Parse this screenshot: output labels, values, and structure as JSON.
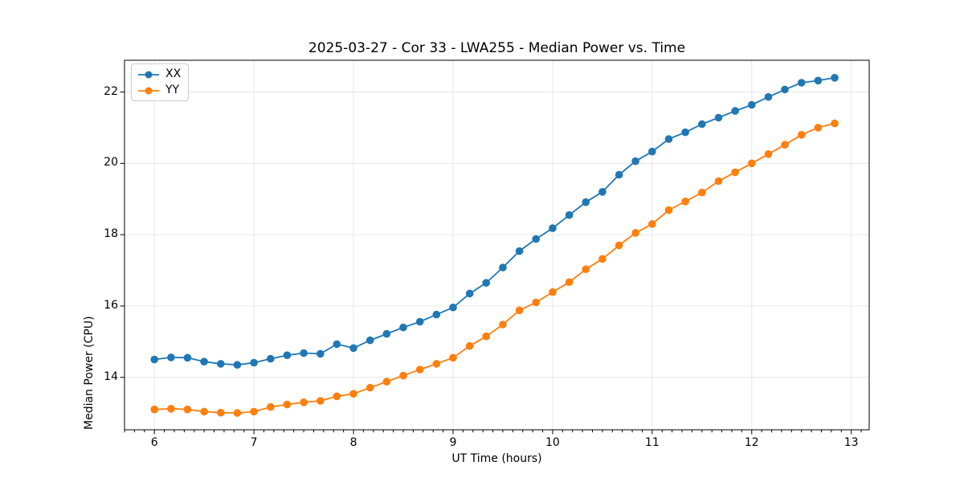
{
  "figure": {
    "background": "#ffffff"
  },
  "chart_data": {
    "type": "line",
    "title": "2025-03-27 - Cor 33 - LWA255 - Median Power vs. Time",
    "xlabel": "UT Time (hours)",
    "ylabel": "Median Power (CPU)",
    "xlim": [
      5.7,
      13.18
    ],
    "ylim": [
      12.53,
      22.89
    ],
    "xticks": [
      6,
      7,
      8,
      9,
      10,
      11,
      12,
      13
    ],
    "yticks": [
      14,
      16,
      18,
      20,
      22
    ],
    "x_minor_tick_step": 0.1,
    "grid": true,
    "grid_color": "#e6e6e6",
    "legend_position": "upper-left",
    "x": [
      6.0,
      6.167,
      6.333,
      6.5,
      6.667,
      6.833,
      7.0,
      7.167,
      7.333,
      7.5,
      7.667,
      7.833,
      8.0,
      8.167,
      8.333,
      8.5,
      8.667,
      8.833,
      9.0,
      9.167,
      9.333,
      9.5,
      9.667,
      9.833,
      10.0,
      10.167,
      10.333,
      10.5,
      10.667,
      10.833,
      11.0,
      11.167,
      11.333,
      11.5,
      11.667,
      11.833,
      12.0,
      12.167,
      12.333,
      12.5,
      12.667,
      12.833
    ],
    "series": [
      {
        "name": "XX",
        "color": "#1f77b4",
        "marker": "circle",
        "values": [
          14.5,
          14.56,
          14.55,
          14.44,
          14.38,
          14.35,
          14.41,
          14.52,
          14.62,
          14.68,
          14.66,
          14.93,
          14.82,
          15.04,
          15.22,
          15.4,
          15.56,
          15.76,
          15.96,
          16.35,
          16.65,
          17.08,
          17.54,
          17.88,
          18.18,
          18.55,
          18.91,
          19.2,
          19.68,
          20.06,
          20.33,
          20.68,
          20.87,
          21.1,
          21.28,
          21.47,
          21.64,
          21.86,
          22.07,
          22.26,
          22.32,
          22.4
        ]
      },
      {
        "name": "YY",
        "color": "#ff7f0e",
        "marker": "circle",
        "values": [
          13.1,
          13.12,
          13.1,
          13.04,
          13.01,
          13.0,
          13.04,
          13.17,
          13.24,
          13.3,
          13.34,
          13.47,
          13.54,
          13.71,
          13.88,
          14.05,
          14.22,
          14.38,
          14.55,
          14.88,
          15.15,
          15.48,
          15.88,
          16.1,
          16.39,
          16.67,
          17.03,
          17.32,
          17.7,
          18.05,
          18.3,
          18.69,
          18.93,
          19.18,
          19.5,
          19.75,
          20.0,
          20.26,
          20.52,
          20.8,
          21.0,
          21.12
        ]
      }
    ]
  }
}
